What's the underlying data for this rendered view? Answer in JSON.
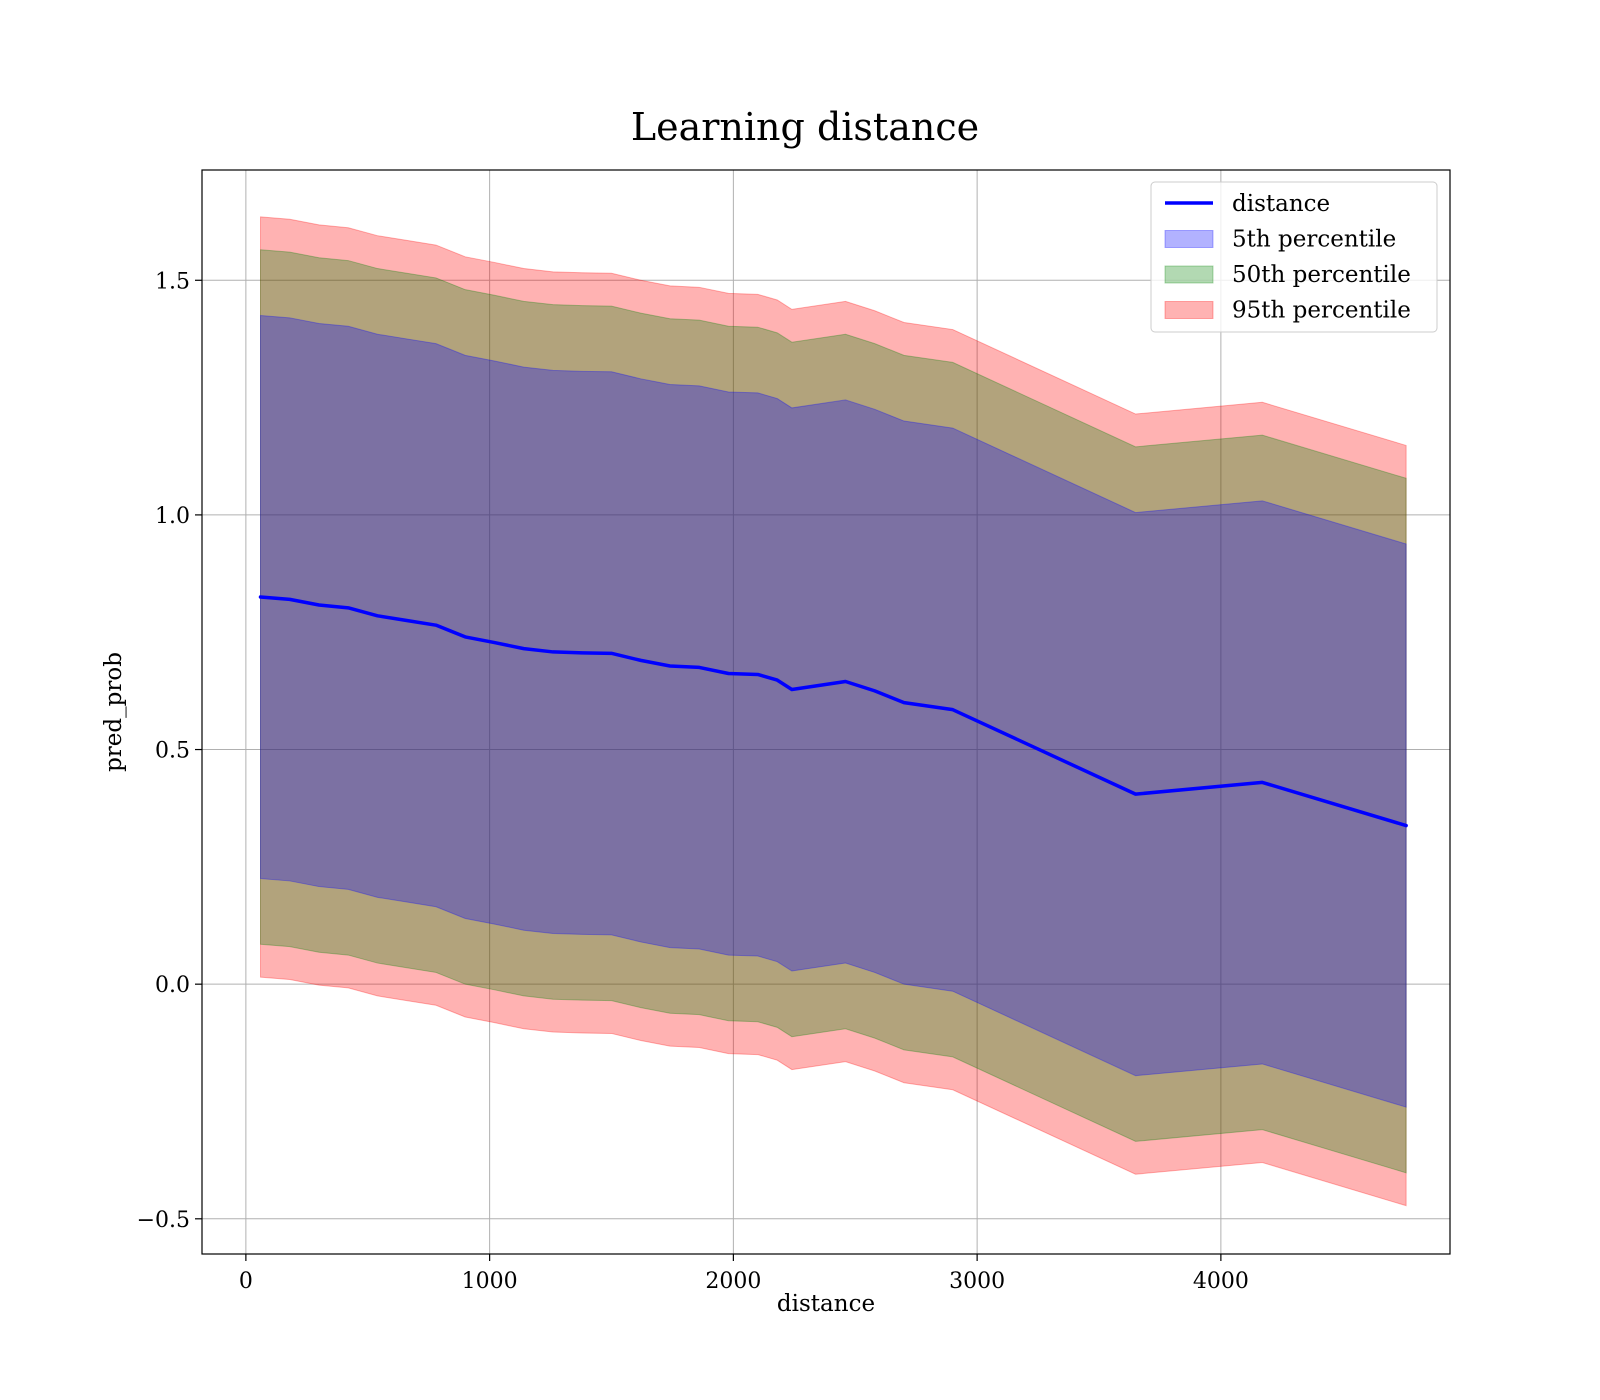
{
  "chart_data": {
    "type": "line",
    "title": "Learning distance",
    "xlabel": "distance",
    "ylabel": "pred_prob",
    "xlim": [
      -180,
      4940
    ],
    "ylim": [
      -0.575,
      1.735
    ],
    "xticks": [
      0,
      1000,
      2000,
      3000,
      4000
    ],
    "xtick_labels": [
      "0",
      "1000",
      "2000",
      "3000",
      "4000"
    ],
    "yticks": [
      -0.5,
      0.0,
      0.5,
      1.0,
      1.5
    ],
    "ytick_labels": [
      "−0.5",
      "0.0",
      "0.5",
      "1.0",
      "1.5"
    ],
    "grid": true,
    "legend_position": "upper-right",
    "x": [
      60,
      180,
      300,
      420,
      540,
      660,
      780,
      900,
      1020,
      1140,
      1260,
      1380,
      1500,
      1620,
      1740,
      1860,
      1980,
      2100,
      2180,
      2240,
      2460,
      2580,
      2700,
      2900,
      3650,
      4170,
      4760
    ],
    "series": [
      {
        "name": "distance",
        "kind": "line",
        "color": "#0000ff",
        "values": [
          0.825,
          0.82,
          0.808,
          0.802,
          0.785,
          0.775,
          0.765,
          0.74,
          0.728,
          0.715,
          0.708,
          0.706,
          0.705,
          0.69,
          0.678,
          0.675,
          0.662,
          0.66,
          0.648,
          0.628,
          0.645,
          0.625,
          0.6,
          0.585,
          0.405,
          0.43,
          0.338
        ]
      },
      {
        "name": "5th percentile",
        "kind": "band",
        "color": "#0000ff",
        "opacity": 0.3,
        "half_width": 0.6
      },
      {
        "name": "50th percentile",
        "kind": "band",
        "color": "#008000",
        "opacity": 0.3,
        "half_width": 0.74
      },
      {
        "name": "95th percentile",
        "kind": "band",
        "color": "#ff0000",
        "opacity": 0.3,
        "half_width": 0.81
      }
    ]
  }
}
